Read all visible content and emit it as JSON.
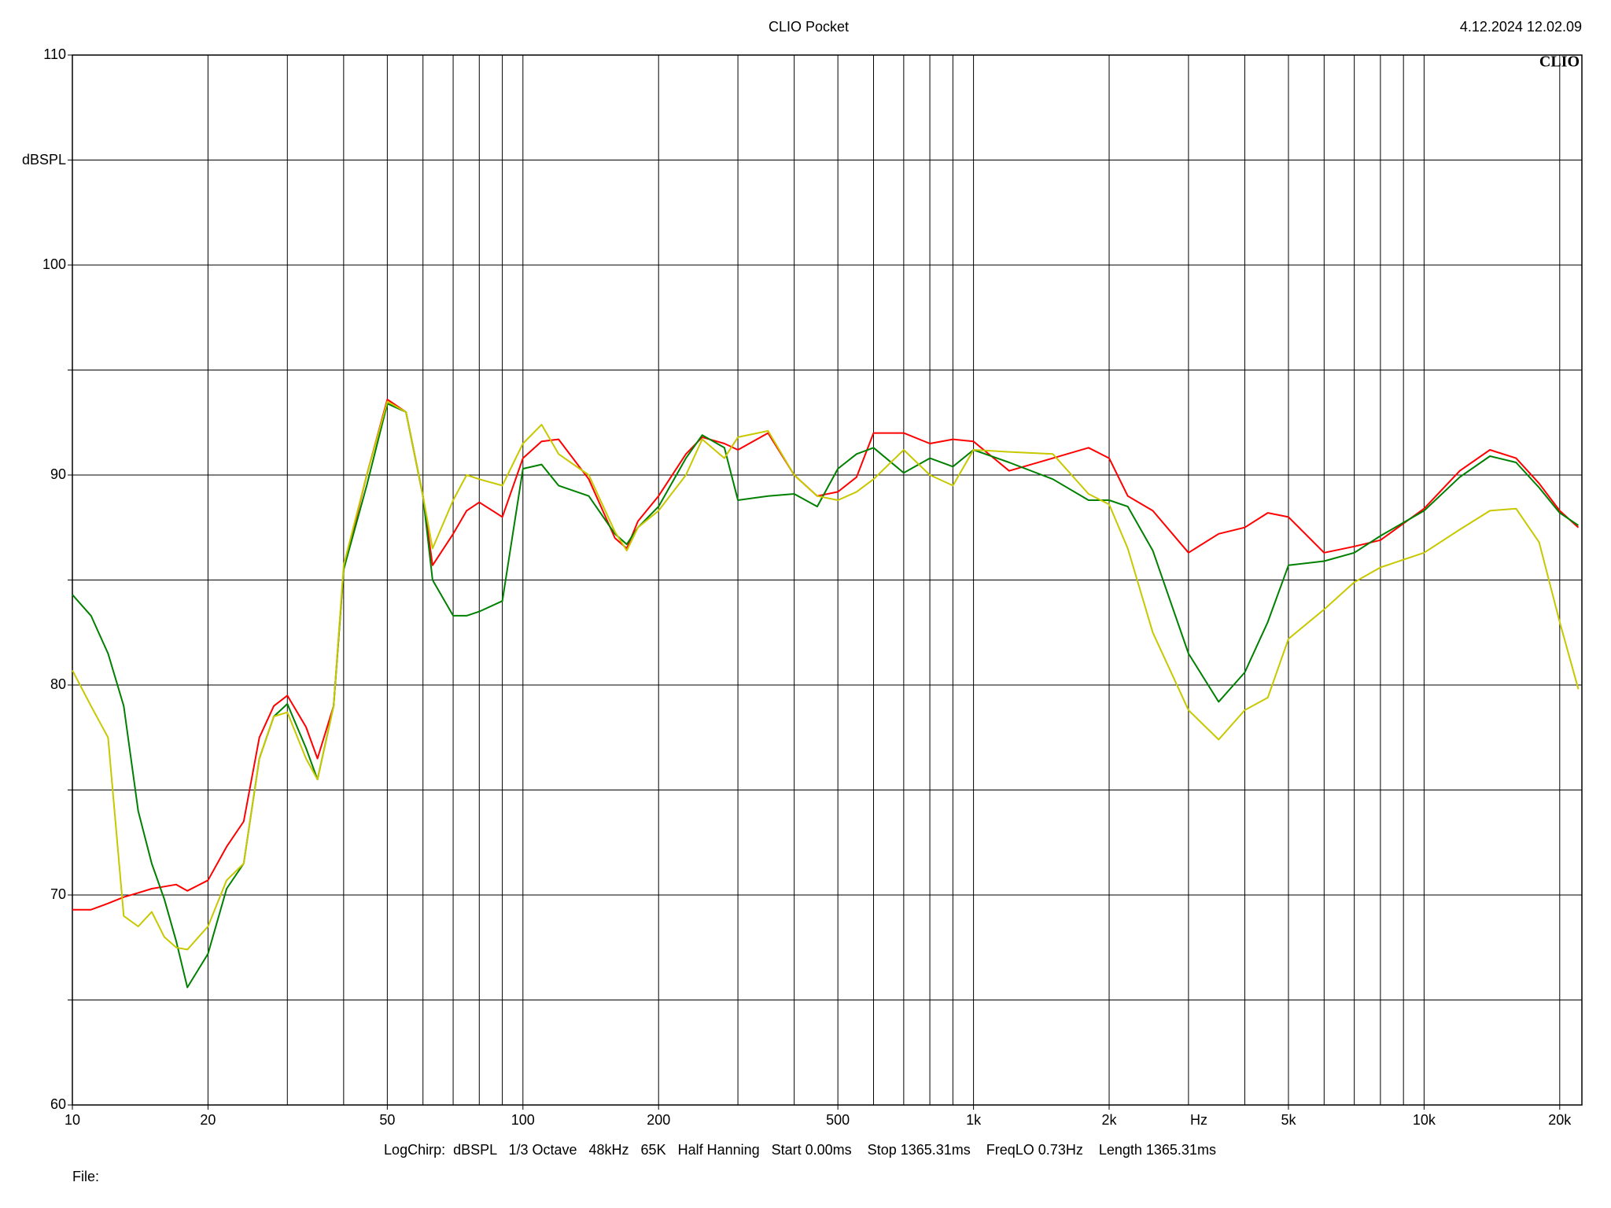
{
  "chart_data": {
    "type": "line",
    "title": "CLIO Pocket",
    "timestamp": "4.12.2024 12.02.09",
    "brand": "CLIO",
    "y_label": "dBSPL",
    "x_label": "Hz",
    "footer": "LogChirp:  dBSPL   1/3 Octave   48kHz   65K   Half Hanning   Start 0.00ms    Stop 1365.31ms    FreqLO 0.73Hz    Length 1365.31ms",
    "file_label": "File:",
    "x_log": true,
    "grid": true,
    "xlim": [
      10,
      22400
    ],
    "ylim": [
      60,
      110
    ],
    "yticks": [
      60,
      70,
      80,
      90,
      100,
      110
    ],
    "yminor": [
      65,
      75,
      85,
      95,
      105
    ],
    "xticks": [
      10,
      20,
      50,
      100,
      200,
      500,
      {
        "value": 1000,
        "label": "1k"
      },
      {
        "value": 2000,
        "label": "2k"
      },
      {
        "value": 5000,
        "label": "5k"
      },
      {
        "value": 10000,
        "label": "10k"
      },
      {
        "value": 20000,
        "label": "20k"
      }
    ],
    "xminor": [
      30,
      40,
      60,
      70,
      80,
      90,
      300,
      400,
      600,
      700,
      800,
      900,
      3000,
      4000,
      6000,
      7000,
      8000,
      9000
    ],
    "x": [
      10,
      11,
      12,
      13,
      14,
      15,
      16,
      17,
      18,
      20,
      22,
      24,
      26,
      28,
      30,
      33,
      35,
      38,
      40,
      45,
      50,
      55,
      60,
      63,
      70,
      75,
      80,
      90,
      100,
      110,
      120,
      140,
      160,
      170,
      180,
      200,
      230,
      250,
      280,
      300,
      350,
      400,
      450,
      500,
      550,
      600,
      700,
      800,
      900,
      1000,
      1200,
      1500,
      1800,
      2000,
      2200,
      2500,
      3000,
      3500,
      4000,
      4500,
      5000,
      6000,
      7000,
      8000,
      10000,
      12000,
      14000,
      16000,
      18000,
      20000,
      22000
    ],
    "series": [
      {
        "color": "#ff0000",
        "values": [
          69.3,
          69.3,
          69.6,
          69.9,
          70.1,
          70.3,
          70.4,
          70.5,
          70.2,
          70.7,
          72.3,
          73.5,
          77.5,
          79.0,
          79.5,
          78.0,
          76.5,
          79.0,
          85.5,
          90.0,
          93.6,
          93.0,
          89.0,
          85.7,
          87.2,
          88.3,
          88.7,
          88.0,
          90.8,
          91.6,
          91.7,
          89.8,
          87.0,
          86.5,
          87.8,
          89.0,
          91.0,
          91.8,
          91.5,
          91.2,
          92.0,
          90.0,
          89.0,
          89.2,
          89.9,
          92.0,
          92.0,
          91.5,
          91.7,
          91.6,
          90.2,
          90.8,
          91.3,
          90.8,
          89.0,
          88.3,
          86.3,
          87.2,
          87.5,
          88.2,
          88.0,
          86.3,
          86.6,
          86.9,
          88.4,
          90.2,
          91.2,
          90.8,
          89.6,
          88.3,
          87.5
        ]
      },
      {
        "color": "#008000",
        "values": [
          84.3,
          83.3,
          81.5,
          79.0,
          74.0,
          71.5,
          69.8,
          67.8,
          65.6,
          67.2,
          70.3,
          71.5,
          76.5,
          78.5,
          79.1,
          77.0,
          75.5,
          79.0,
          85.5,
          89.5,
          93.4,
          93.0,
          89.0,
          85.0,
          83.3,
          83.3,
          83.5,
          84.0,
          90.3,
          90.5,
          89.5,
          89.0,
          87.2,
          86.7,
          87.5,
          88.5,
          90.8,
          91.9,
          91.3,
          88.8,
          89.0,
          89.1,
          88.5,
          90.3,
          91.0,
          91.3,
          90.1,
          90.8,
          90.4,
          91.2,
          90.6,
          89.8,
          88.8,
          88.8,
          88.5,
          86.4,
          81.5,
          79.2,
          80.6,
          83.0,
          85.7,
          85.9,
          86.3,
          87.1,
          88.3,
          89.9,
          90.9,
          90.6,
          89.4,
          88.2,
          87.6
        ]
      },
      {
        "color": "#c8c800",
        "values": [
          80.7,
          79.0,
          77.5,
          69.0,
          68.5,
          69.2,
          68.0,
          67.5,
          67.4,
          68.5,
          70.7,
          71.5,
          76.5,
          78.5,
          78.7,
          76.5,
          75.5,
          79.0,
          85.7,
          90.0,
          93.5,
          93.0,
          89.0,
          86.5,
          88.8,
          90.0,
          89.8,
          89.5,
          91.5,
          92.4,
          91.0,
          90.0,
          87.3,
          86.4,
          87.5,
          88.3,
          90.0,
          91.7,
          90.8,
          91.8,
          92.1,
          90.0,
          89.0,
          88.8,
          89.2,
          89.8,
          91.2,
          90.0,
          89.5,
          91.2,
          91.1,
          91.0,
          89.1,
          88.6,
          86.5,
          82.5,
          78.8,
          77.4,
          78.8,
          79.4,
          82.2,
          83.6,
          84.9,
          85.6,
          86.3,
          87.4,
          88.3,
          88.4,
          86.8,
          83.0,
          79.8
        ]
      }
    ]
  }
}
